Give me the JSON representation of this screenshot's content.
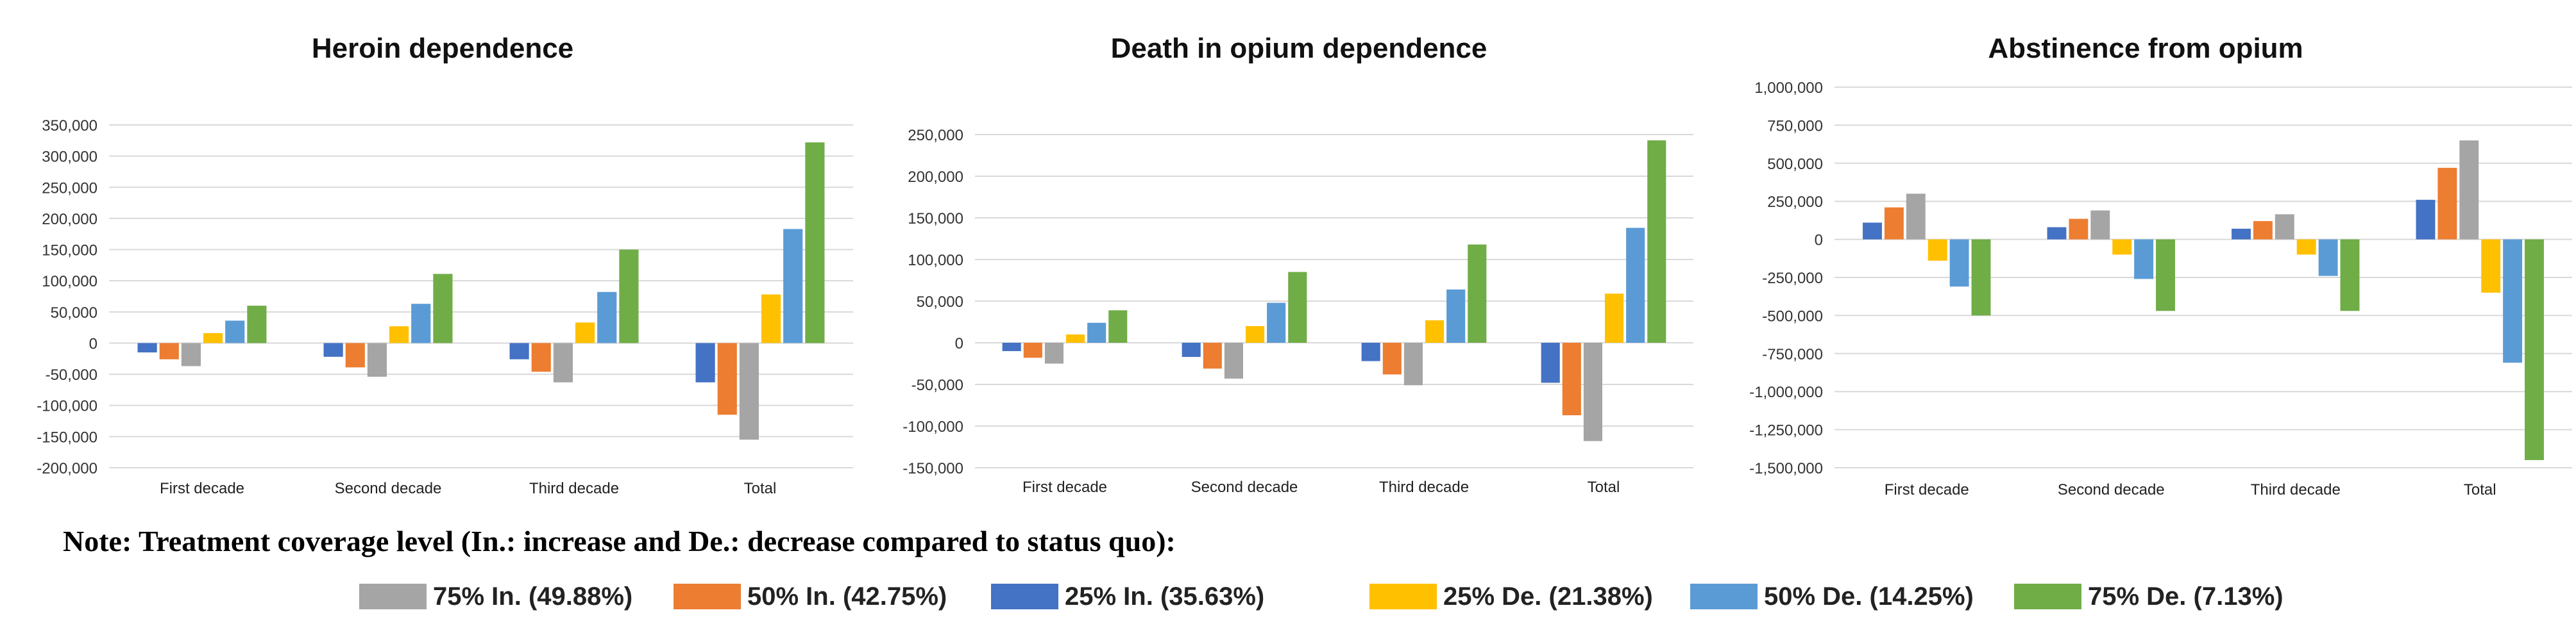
{
  "colors": {
    "in75": "#A5A5A5",
    "in50": "#ED7D31",
    "in25": "#4472C4",
    "de25": "#FFC000",
    "de50": "#5B9BD5",
    "de75": "#70AD47"
  },
  "note": "Note: Treatment coverage level (In.: increase and De.: decrease compared to status quo):",
  "legend": [
    {
      "key": "in75",
      "label": "75% In. (49.88%)"
    },
    {
      "key": "in50",
      "label": "50% In. (42.75%)"
    },
    {
      "key": "in25",
      "label": "25% In. (35.63%)"
    },
    {
      "key": "de25",
      "label": "25% De. (21.38%)"
    },
    {
      "key": "de50",
      "label": "50% De. (14.25%)"
    },
    {
      "key": "de75",
      "label": "75% De. (7.13%)"
    }
  ],
  "chart_data": [
    {
      "type": "bar",
      "title": "Heroin dependence",
      "categories": [
        "First decade",
        "Second decade",
        "Third decade",
        "Total"
      ],
      "ylim": [
        -200000,
        350000
      ],
      "yticks": [
        -200000,
        -150000,
        -100000,
        -50000,
        0,
        50000,
        100000,
        150000,
        200000,
        250000,
        300000,
        350000
      ],
      "ytick_labels": [
        "-200,000",
        "-150,000",
        "-100,000",
        "-50,000",
        "0",
        "50,000",
        "100,000",
        "150,000",
        "200,000",
        "250,000",
        "300,000",
        "350,000"
      ],
      "grid": true,
      "series": [
        {
          "key": "in25",
          "name": "25% In. (35.63%)",
          "values": [
            -15000,
            -22000,
            -26000,
            -63000
          ]
        },
        {
          "key": "in50",
          "name": "50% In. (42.75%)",
          "values": [
            -26000,
            -39000,
            -46000,
            -115000
          ]
        },
        {
          "key": "in75",
          "name": "75% In. (49.88%)",
          "values": [
            -37000,
            -54000,
            -63000,
            -155000
          ]
        },
        {
          "key": "de25",
          "name": "25% De. (21.38%)",
          "values": [
            16000,
            27000,
            33000,
            78000
          ]
        },
        {
          "key": "de50",
          "name": "50% De. (14.25%)",
          "values": [
            36000,
            63000,
            82000,
            183000
          ]
        },
        {
          "key": "de75",
          "name": "75% De. (7.13%)",
          "values": [
            60000,
            111000,
            150000,
            322000
          ]
        }
      ]
    },
    {
      "type": "bar",
      "title": "Death in opium dependence",
      "categories": [
        "First decade",
        "Second decade",
        "Third decade",
        "Total"
      ],
      "ylim": [
        -150000,
        250000
      ],
      "yticks": [
        -150000,
        -100000,
        -50000,
        0,
        50000,
        100000,
        150000,
        200000,
        250000
      ],
      "ytick_labels": [
        "-150,000",
        "-100,000",
        "-50,000",
        "0",
        "50,000",
        "100,000",
        "150,000",
        "200,000",
        "250,000"
      ],
      "grid": true,
      "series": [
        {
          "key": "in25",
          "name": "25% In. (35.63%)",
          "values": [
            -10000,
            -17000,
            -22000,
            -48000
          ]
        },
        {
          "key": "in50",
          "name": "50% In. (42.75%)",
          "values": [
            -18000,
            -31000,
            -38000,
            -87000
          ]
        },
        {
          "key": "in75",
          "name": "75% In. (49.88%)",
          "values": [
            -25000,
            -43000,
            -51000,
            -118000
          ]
        },
        {
          "key": "de25",
          "name": "25% De. (21.38%)",
          "values": [
            10000,
            20000,
            27000,
            59000
          ]
        },
        {
          "key": "de50",
          "name": "50% De. (14.25%)",
          "values": [
            24000,
            48000,
            64000,
            138000
          ]
        },
        {
          "key": "de75",
          "name": "75% De. (7.13%)",
          "values": [
            39000,
            85000,
            118000,
            243000
          ]
        }
      ]
    },
    {
      "type": "bar",
      "title": "Abstinence from opium",
      "categories": [
        "First decade",
        "Second decade",
        "Third decade",
        "Total"
      ],
      "ylim": [
        -1500000,
        1000000
      ],
      "yticks": [
        -1500000,
        -1250000,
        -1000000,
        -750000,
        -500000,
        -250000,
        0,
        250000,
        500000,
        750000,
        1000000
      ],
      "ytick_labels": [
        "-1,500,000",
        "-1,250,000",
        "-1,000,000",
        "-750,000",
        "-500,000",
        "-250,000",
        "0",
        "250,000",
        "500,000",
        "750,000",
        "1,000,000"
      ],
      "grid": true,
      "series": [
        {
          "key": "in25",
          "name": "25% In. (35.63%)",
          "values": [
            110000,
            80000,
            70000,
            260000
          ]
        },
        {
          "key": "in50",
          "name": "50% In. (42.75%)",
          "values": [
            210000,
            135000,
            120000,
            470000
          ]
        },
        {
          "key": "in75",
          "name": "75% In. (49.88%)",
          "values": [
            300000,
            190000,
            165000,
            650000
          ]
        },
        {
          "key": "de25",
          "name": "25% De. (21.38%)",
          "values": [
            -140000,
            -100000,
            -100000,
            -350000
          ]
        },
        {
          "key": "de50",
          "name": "50% De. (14.25%)",
          "values": [
            -310000,
            -260000,
            -240000,
            -810000
          ]
        },
        {
          "key": "de75",
          "name": "75% De. (7.13%)",
          "values": [
            -500000,
            -470000,
            -470000,
            -1450000
          ]
        }
      ]
    }
  ]
}
